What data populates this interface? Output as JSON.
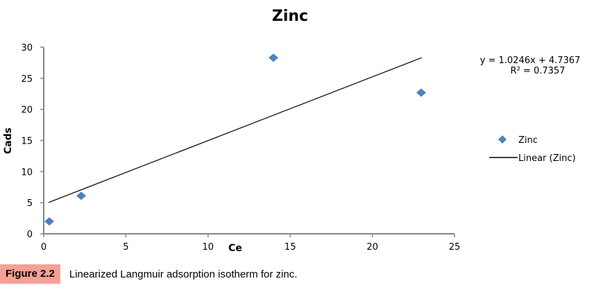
{
  "chart_data": {
    "type": "scatter",
    "title": "Zinc",
    "xlabel": "Ce",
    "ylabel": "Cads",
    "xlim": [
      0,
      25
    ],
    "ylim": [
      0,
      30
    ],
    "xticks": [
      0,
      5,
      10,
      15,
      20,
      25
    ],
    "yticks": [
      0,
      5,
      10,
      15,
      20,
      25,
      30
    ],
    "grid": false,
    "legend_position": "right",
    "series": [
      {
        "name": "Zinc",
        "marker": "diamond",
        "color": "#4f81bd",
        "points": [
          [
            0.34,
            2.0
          ],
          [
            2.28,
            6.1
          ],
          [
            13.98,
            28.3
          ],
          [
            22.97,
            22.7
          ]
        ]
      }
    ],
    "trendline": {
      "name": "Linear (Zinc)",
      "slope": 1.0246,
      "intercept": 4.7367,
      "x_range": [
        0.3,
        23.0
      ],
      "color": "#000000"
    },
    "annotations": {
      "equation": "y = 1.0246x + 4.7367",
      "r2": "R² = 0.7357"
    }
  },
  "caption": {
    "label": "Figure 2.2",
    "text": "Linearized Langmuir adsorption isotherm for zinc.",
    "label_color": "#f4a096"
  }
}
